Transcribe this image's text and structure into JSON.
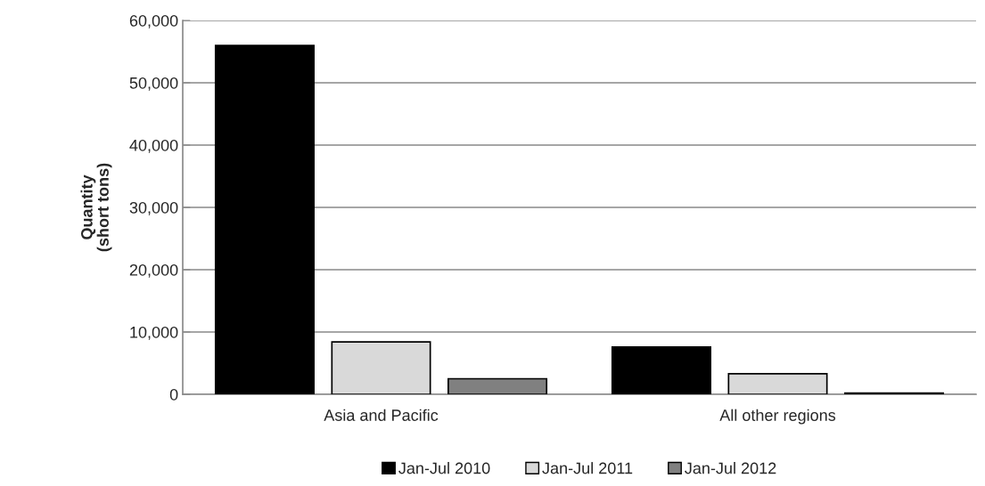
{
  "chart_data": {
    "type": "bar",
    "ylabel": "Quantity\n(short tons)",
    "categories": [
      "Asia and Pacific",
      "All other regions"
    ],
    "series": [
      {
        "name": "Jan-Jul 2010",
        "color": "#000000",
        "values": [
          56000,
          7600
        ]
      },
      {
        "name": "Jan-Jul 2011",
        "color": "#d9d9d9",
        "values": [
          8400,
          3300
        ]
      },
      {
        "name": "Jan-Jul 2012",
        "color": "#808080",
        "values": [
          2500,
          200
        ]
      }
    ],
    "ylim": [
      0,
      60000
    ],
    "yticks": [
      {
        "value": 0,
        "label": "0"
      },
      {
        "value": 10000,
        "label": "10,000"
      },
      {
        "value": 20000,
        "label": "20,000"
      },
      {
        "value": 30000,
        "label": "30,000"
      },
      {
        "value": 40000,
        "label": "40,000"
      },
      {
        "value": 50000,
        "label": "50,000"
      },
      {
        "value": 60000,
        "label": "60,000"
      }
    ],
    "grid": "y",
    "legend": "bottom"
  }
}
